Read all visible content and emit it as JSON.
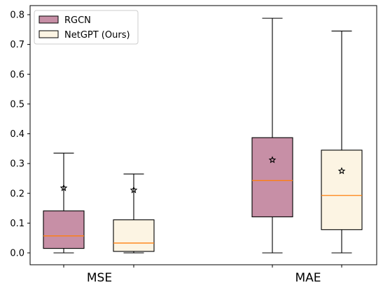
{
  "chart_data": {
    "type": "box",
    "categories": [
      "MSE",
      "MAE"
    ],
    "ylim": [
      -0.04,
      0.81
    ],
    "yticks": [
      0.0,
      0.1,
      0.2,
      0.3,
      0.4,
      0.5,
      0.6,
      0.7,
      0.8
    ],
    "ytick_labels": [
      "0.0",
      "0.1",
      "0.2",
      "0.3",
      "0.4",
      "0.5",
      "0.6",
      "0.7",
      "0.8"
    ],
    "xlabel": "",
    "ylabel": "",
    "grid": false,
    "legend_position": "top-left",
    "series": [
      {
        "name": "RGCN",
        "color": "#c78fa6",
        "median_color": "#ff7f0e",
        "boxes": [
          {
            "category": "MSE",
            "whisker_low": 0.0,
            "q1": 0.015,
            "median": 0.057,
            "q3": 0.141,
            "whisker_high": 0.335,
            "mean": 0.218
          },
          {
            "category": "MAE",
            "whisker_low": 0.0,
            "q1": 0.121,
            "median": 0.243,
            "q3": 0.387,
            "whisker_high": 0.788,
            "mean": 0.312
          }
        ]
      },
      {
        "name": "NetGPT (Ours)",
        "color": "#fcf4e3",
        "median_color": "#ff7f0e",
        "boxes": [
          {
            "category": "MSE",
            "whisker_low": 0.0,
            "q1": 0.005,
            "median": 0.033,
            "q3": 0.111,
            "whisker_high": 0.265,
            "mean": 0.211
          },
          {
            "category": "MAE",
            "whisker_low": 0.0,
            "q1": 0.078,
            "median": 0.193,
            "q3": 0.345,
            "whisker_high": 0.745,
            "mean": 0.275
          }
        ]
      }
    ]
  }
}
